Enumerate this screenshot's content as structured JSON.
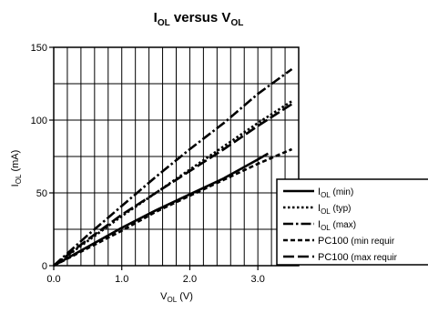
{
  "chart_data": {
    "type": "line",
    "title": {
      "main": "I",
      "sub1": "OL",
      "mid": " versus V",
      "sub2": "OL"
    },
    "xlabel": {
      "main": "V",
      "sub": "OL",
      "unit": " (V)"
    },
    "ylabel": {
      "main": "I",
      "sub": "OL",
      "unit": " (mA)"
    },
    "xlim": [
      0,
      3.6
    ],
    "ylim": [
      0,
      150
    ],
    "xticks": [
      {
        "value": 0,
        "label": "0.0"
      },
      {
        "value": 1,
        "label": "1.0"
      },
      {
        "value": 2,
        "label": "2.0"
      },
      {
        "value": 3,
        "label": "3.0"
      }
    ],
    "yticks": [
      {
        "value": 0,
        "label": "0"
      },
      {
        "value": 50,
        "label": "50"
      },
      {
        "value": 100,
        "label": "100"
      },
      {
        "value": 150,
        "label": "150"
      }
    ],
    "grid": true,
    "legend_position": "right",
    "series": [
      {
        "label_main": "I",
        "label_sub": "OL",
        "label_rest": " (min)",
        "dash": "solid",
        "points": [
          [
            0,
            0
          ],
          [
            0.5,
            13
          ],
          [
            1.0,
            26
          ],
          [
            1.5,
            38
          ],
          [
            2.0,
            49
          ],
          [
            2.5,
            60
          ],
          [
            3.0,
            73
          ],
          [
            3.15,
            77
          ]
        ]
      },
      {
        "label_main": "I",
        "label_sub": "OL",
        "label_rest": " (typ)",
        "dash": "dot",
        "points": [
          [
            0,
            0
          ],
          [
            0.5,
            17
          ],
          [
            1.0,
            34
          ],
          [
            1.5,
            50
          ],
          [
            2.0,
            66
          ],
          [
            2.5,
            82
          ],
          [
            3.0,
            98
          ],
          [
            3.5,
            113
          ]
        ]
      },
      {
        "label_main": "I",
        "label_sub": "OL",
        "label_rest": " (max)",
        "dash": "dashdot",
        "points": [
          [
            0,
            0
          ],
          [
            0.5,
            21
          ],
          [
            1.0,
            41
          ],
          [
            1.5,
            61
          ],
          [
            2.0,
            80
          ],
          [
            2.5,
            98
          ],
          [
            3.0,
            118
          ],
          [
            3.5,
            135
          ]
        ]
      },
      {
        "label_main": "PC100",
        "label_sub": "",
        "label_rest": " (min requir",
        "dash": "dash",
        "points": [
          [
            0,
            0
          ],
          [
            0.5,
            12
          ],
          [
            1.0,
            24
          ],
          [
            1.5,
            37
          ],
          [
            2.0,
            48
          ],
          [
            2.5,
            59
          ],
          [
            3.0,
            70
          ],
          [
            3.5,
            80
          ]
        ]
      },
      {
        "label_main": "PC100",
        "label_sub": "",
        "label_rest": " (max requir",
        "dash": "longdash",
        "points": [
          [
            0,
            0
          ],
          [
            0.5,
            18
          ],
          [
            1.0,
            35
          ],
          [
            1.5,
            50
          ],
          [
            2.0,
            65
          ],
          [
            2.5,
            80
          ],
          [
            3.0,
            96
          ],
          [
            3.5,
            111
          ]
        ]
      }
    ]
  }
}
